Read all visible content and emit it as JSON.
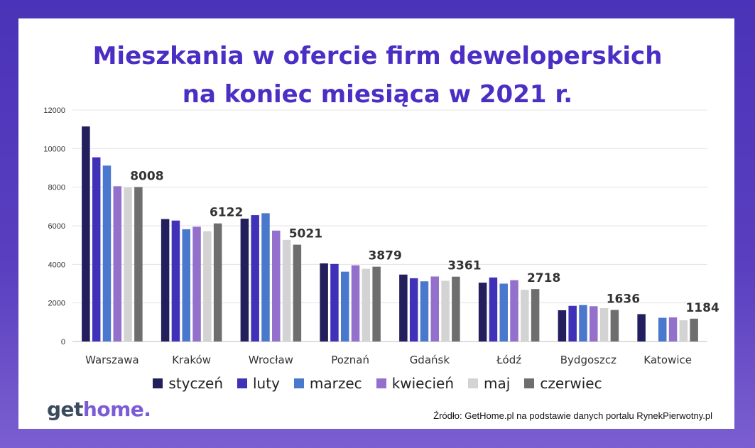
{
  "title": {
    "line1": "Mieszkania w ofercie firm deweloperskich",
    "line2": "na koniec miesiąca w 2021 r."
  },
  "logo": {
    "part1": "get",
    "part2": "home."
  },
  "source": "Źródło: GetHome.pl na podstawie danych portalu RynekPierwotny.pl",
  "colors": {
    "frame": "#4a33b8",
    "title": "#4b2fc4",
    "series": [
      "#221f5c",
      "#3f32b8",
      "#4a78cc",
      "#9270cc",
      "#d3d3d3",
      "#6e6e6e"
    ]
  },
  "chart_data": {
    "type": "bar",
    "categories": [
      "Warszawa",
      "Kraków",
      "Wrocław",
      "Poznań",
      "Gdańsk",
      "Łódź",
      "Bydgoszcz",
      "Katowice"
    ],
    "series": [
      {
        "name": "styczeń",
        "values": [
          11150,
          6350,
          6370,
          4050,
          3470,
          3050,
          1620,
          1420
        ]
      },
      {
        "name": "luty",
        "values": [
          9550,
          6270,
          6550,
          4020,
          3280,
          3320,
          1850,
          null
        ]
      },
      {
        "name": "marzec",
        "values": [
          9120,
          5820,
          6650,
          3620,
          3120,
          3000,
          1890,
          1230
        ]
      },
      {
        "name": "kwiecień",
        "values": [
          8050,
          5950,
          5750,
          3950,
          3370,
          3180,
          1830,
          1250
        ]
      },
      {
        "name": "maj",
        "values": [
          7980,
          5720,
          5270,
          3770,
          3150,
          2680,
          1730,
          1100
        ]
      },
      {
        "name": "czerwiec",
        "values": [
          8008,
          6122,
          5021,
          3879,
          3361,
          2718,
          1636,
          1184
        ]
      }
    ],
    "data_labels": [
      "8008",
      "6122",
      "5021",
      "3879",
      "3361",
      "2718",
      "1636",
      "1184"
    ],
    "y_ticks": [
      0,
      2000,
      4000,
      6000,
      8000,
      10000,
      12000
    ],
    "ylim": [
      0,
      12000
    ],
    "grid": true,
    "legend": "bottom"
  }
}
